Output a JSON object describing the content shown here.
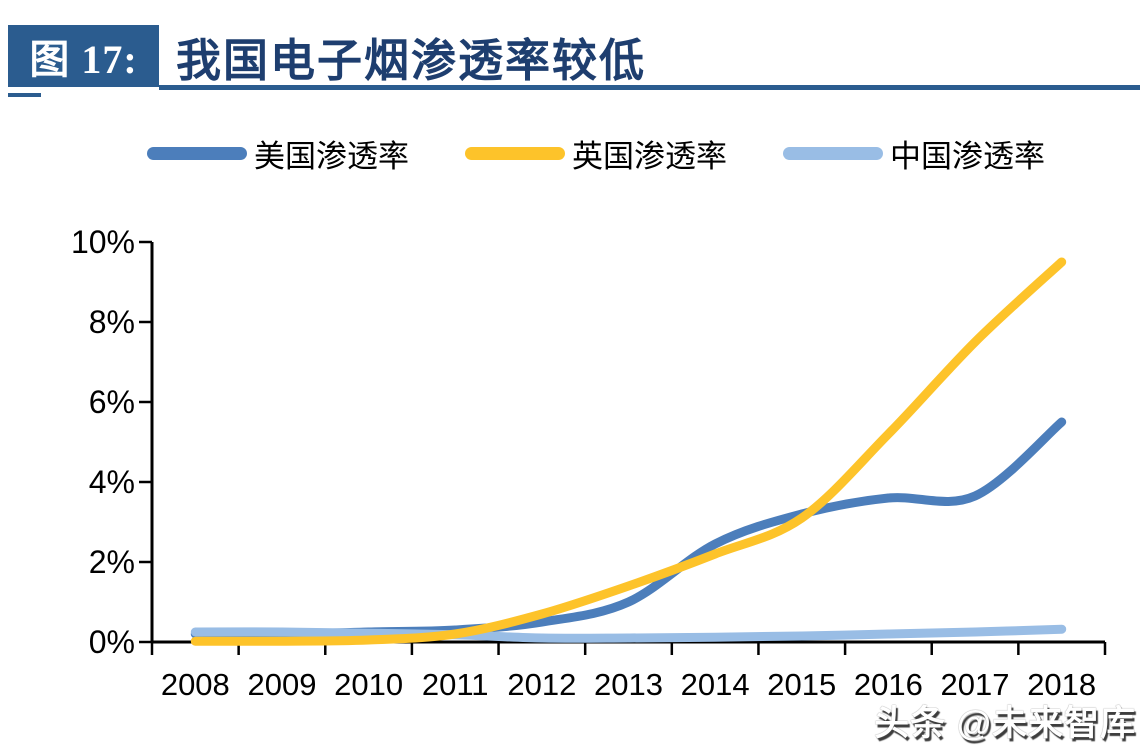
{
  "header": {
    "figure_label": "图 17:",
    "title": "我国电子烟渗透率较低"
  },
  "legend": [
    {
      "label": "美国渗透率",
      "color": "#4C7EBB"
    },
    {
      "label": "英国渗透率",
      "color": "#FDC32A"
    },
    {
      "label": "中国渗透率",
      "color": "#99BDE5"
    }
  ],
  "watermark": "头条 @未来智库",
  "colors": {
    "header_box": "#2B5C8F",
    "header_rule": "#2B5C8F",
    "title_text": "#1E3E6F",
    "axis": "#000000",
    "us_line": "#4C7EBB",
    "uk_line": "#FDC32A",
    "cn_line": "#99BDE5"
  },
  "chart_data": {
    "type": "line",
    "title": "我国电子烟渗透率较低",
    "xlabel": "",
    "ylabel": "",
    "categories": [
      2008,
      2009,
      2010,
      2011,
      2012,
      2013,
      2014,
      2015,
      2016,
      2017,
      2018
    ],
    "series": [
      {
        "name": "美国渗透率",
        "color": "#4C7EBB",
        "values": [
          0.2,
          0.2,
          0.25,
          0.3,
          0.5,
          1.0,
          2.45,
          3.2,
          3.6,
          3.65,
          5.5
        ]
      },
      {
        "name": "英国渗透率",
        "color": "#FDC32A",
        "values": [
          0.02,
          0.02,
          0.05,
          0.2,
          0.7,
          1.4,
          2.2,
          3.1,
          5.2,
          7.5,
          9.5
        ]
      },
      {
        "name": "中国渗透率",
        "color": "#99BDE5",
        "values": [
          0.25,
          0.25,
          0.22,
          0.18,
          0.1,
          0.1,
          0.12,
          0.15,
          0.2,
          0.25,
          0.32
        ]
      }
    ],
    "ylim": [
      0,
      10
    ],
    "yticks": [
      "0%",
      "2%",
      "4%",
      "6%",
      "8%",
      "10%"
    ],
    "ytick_values": [
      0,
      2,
      4,
      6,
      8,
      10
    ],
    "grid": false,
    "legend_position": "top"
  }
}
